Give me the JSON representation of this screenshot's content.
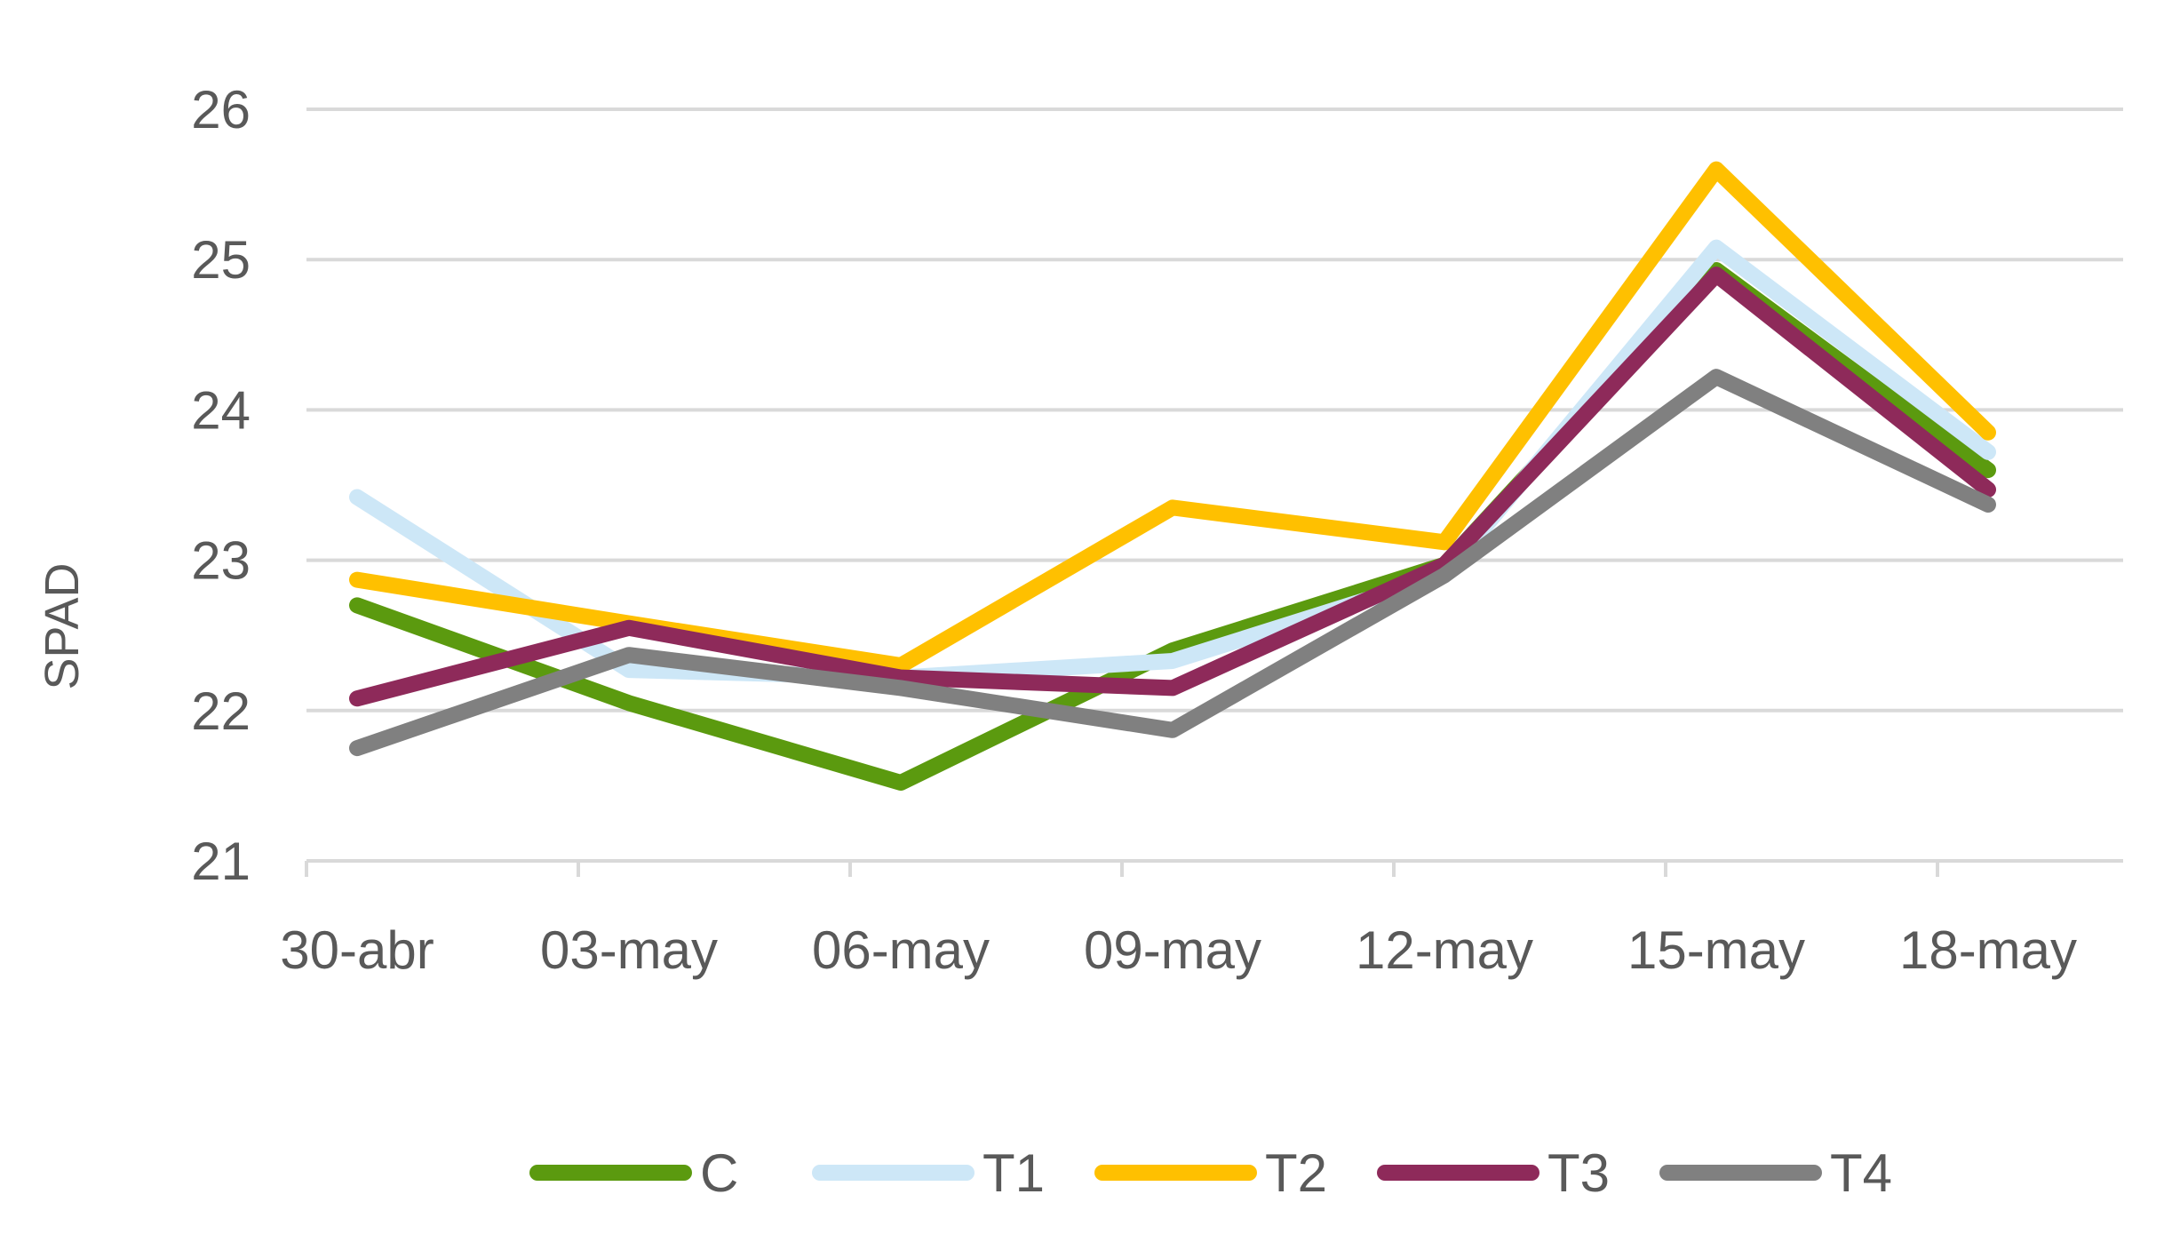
{
  "chart_data": {
    "type": "line",
    "ylabel": "SPAD",
    "ylim": [
      21,
      26
    ],
    "yticks": [
      21,
      22,
      23,
      24,
      25,
      26
    ],
    "x": [
      "30-abr",
      "03-may",
      "06-may",
      "09-may",
      "12-may",
      "15-may",
      "18-may"
    ],
    "grid": true,
    "legend_position": "bottom",
    "series": [
      {
        "name": "C",
        "color": "#5B9A0F",
        "values": [
          22.7,
          22.05,
          21.52,
          22.4,
          22.97,
          24.93,
          23.6
        ]
      },
      {
        "name": "T1",
        "color": "#CDE7F7",
        "values": [
          23.42,
          22.27,
          22.22,
          22.33,
          22.9,
          25.08,
          23.72
        ]
      },
      {
        "name": "T2",
        "color": "#FFC000",
        "values": [
          22.87,
          22.58,
          22.3,
          23.35,
          23.12,
          25.6,
          23.85
        ]
      },
      {
        "name": "T3",
        "color": "#8E2A5A",
        "values": [
          22.08,
          22.55,
          22.22,
          22.15,
          22.97,
          24.9,
          23.47
        ]
      },
      {
        "name": "T4",
        "color": "#808080",
        "values": [
          21.75,
          22.37,
          22.15,
          21.87,
          22.9,
          24.22,
          23.37
        ]
      }
    ]
  }
}
